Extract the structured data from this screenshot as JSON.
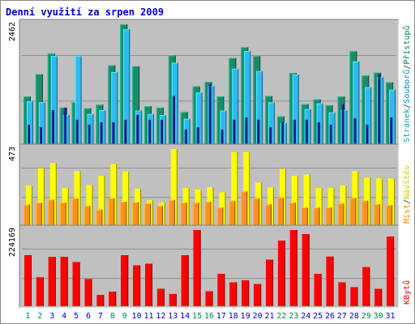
{
  "chart_data": {
    "type": "bar",
    "title": "Denní využití za srpen 2009",
    "categories": [
      "1",
      "2",
      "3",
      "4",
      "5",
      "6",
      "7",
      "8",
      "9",
      "10",
      "11",
      "12",
      "13",
      "14",
      "15",
      "16",
      "17",
      "18",
      "19",
      "20",
      "21",
      "22",
      "23",
      "24",
      "25",
      "26",
      "27",
      "28",
      "29",
      "30",
      "31"
    ],
    "weekend_days": [
      "1",
      "2",
      "8",
      "9",
      "15",
      "16",
      "22",
      "23",
      "29",
      "30"
    ],
    "panels": [
      {
        "name": "top",
        "ymax_label": "2462",
        "ymax": 2462,
        "right_labels": [
          "Stránek",
          "/",
          "Souborů",
          "/",
          "Přístupů"
        ],
        "right_label_colors": [
          "#00aaaa",
          "#222222",
          "#0088cc",
          "#222222",
          "#008040"
        ],
        "series": [
          {
            "name": "Přístupů",
            "color": "#1a8c6c",
            "values": [
              980,
              1440,
              1860,
              750,
              860,
              740,
              810,
              1620,
              2462,
              1600,
              780,
              750,
              1820,
              660,
              1190,
              1280,
              980,
              1770,
              1990,
              1810,
              990,
              570,
              1460,
              820,
              920,
              800,
              980,
              1910,
              1410,
              1470,
              1270
            ]
          },
          {
            "name": "Souborů",
            "color": "#30b8f0",
            "values": [
              880,
              860,
              1810,
              600,
              1810,
              620,
              700,
              1480,
              2360,
              690,
              620,
              600,
              1670,
              520,
              1060,
              1200,
              690,
              1550,
              1910,
              1500,
              860,
              440,
              1430,
              720,
              840,
              650,
              700,
              1700,
              1170,
              1380,
              1120
            ]
          },
          {
            "name": "Stránek",
            "color": "#1a2a8c",
            "values": [
              400,
              350,
              700,
              750,
              500,
              400,
              450,
              450,
              500,
              600,
              500,
              500,
              990,
              300,
              350,
              1230,
              300,
              500,
              550,
              500,
              350,
              450,
              500,
              500,
              450,
              400,
              820,
              530,
              400,
              1440,
              550
            ]
          }
        ]
      },
      {
        "name": "middle",
        "ymax_label": "473",
        "ymax": 473,
        "right_labels": [
          "Míst",
          "/",
          "Návštěv"
        ],
        "right_label_colors": [
          "#ff8800",
          "#222222",
          "#cccc00"
        ],
        "series": [
          {
            "name": "Návštěv",
            "color": "#ffff00",
            "values": [
              246,
              353,
              386,
              230,
              336,
              250,
              307,
              380,
              333,
              226,
              154,
              140,
              473,
              230,
              220,
              236,
              204,
              453,
              453,
              264,
              236,
              349,
              307,
              313,
              230,
              230,
              247,
              336,
              297,
              290,
              290
            ]
          },
          {
            "name": "Míst",
            "color": "#ff9020",
            "values": [
              128,
              140,
              159,
              140,
              167,
              120,
              97,
              167,
              146,
              143,
              135,
              120,
              157,
              140,
              140,
              146,
              110,
              152,
              210,
              167,
              130,
              172,
              140,
              110,
              110,
              110,
              135,
              170,
              152,
              130,
              125
            ]
          }
        ]
      },
      {
        "name": "bottom",
        "ymax_label": "224169",
        "ymax": 224169,
        "right_labels": [
          "KBytů"
        ],
        "right_label_colors": [
          "#ff0000"
        ],
        "series": [
          {
            "name": "KBytů",
            "color": "#ff0000",
            "values": [
              150000,
              85000,
              145000,
              145000,
              130000,
              80000,
              33000,
              43000,
              150000,
              120000,
              125000,
              51000,
              36000,
              150000,
              224169,
              44000,
              95000,
              70000,
              76000,
              65000,
              137000,
              193000,
              224169,
              212000,
              95000,
              146000,
              70000,
              56000,
              115000,
              51000,
              205000
            ]
          }
        ]
      }
    ]
  }
}
